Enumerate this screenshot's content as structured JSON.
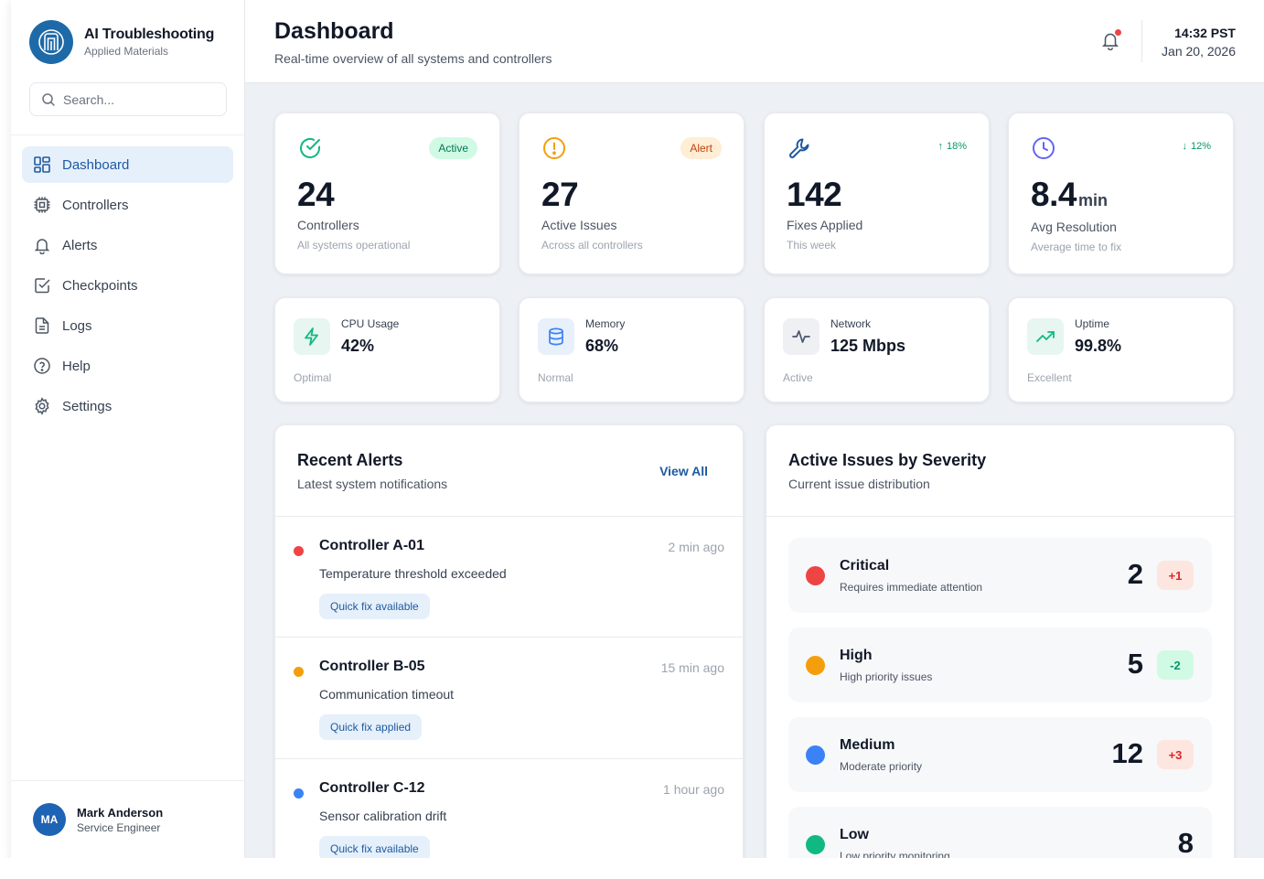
{
  "brand": {
    "title": "AI Troubleshooting",
    "subtitle": "Applied Materials"
  },
  "search": {
    "placeholder": "Search..."
  },
  "nav": [
    {
      "label": "Dashboard",
      "icon": "dashboard-icon",
      "active": true
    },
    {
      "label": "Controllers",
      "icon": "chip-icon"
    },
    {
      "label": "Alerts",
      "icon": "bell-icon"
    },
    {
      "label": "Checkpoints",
      "icon": "checkbox-icon"
    },
    {
      "label": "Logs",
      "icon": "document-icon"
    },
    {
      "label": "Help",
      "icon": "help-icon"
    },
    {
      "label": "Settings",
      "icon": "gear-icon"
    }
  ],
  "user": {
    "initials": "MA",
    "name": "Mark Anderson",
    "role": "Service Engineer"
  },
  "header": {
    "title": "Dashboard",
    "subtitle": "Real-time overview of all systems and controllers",
    "time": "14:32 PST",
    "date": "Jan 20, 2026"
  },
  "stats": [
    {
      "value": "24",
      "label": "Controllers",
      "note": "All systems operational",
      "badge": "Active",
      "icon": "check-circle-icon",
      "color": "#10b981"
    },
    {
      "value": "27",
      "label": "Active Issues",
      "note": "Across all controllers",
      "badge": "Alert",
      "icon": "alert-circle-icon",
      "color": "#f59e0b"
    },
    {
      "value": "142",
      "label": "Fixes Applied",
      "note": "This week",
      "badge": "18%",
      "trend": "up",
      "icon": "wrench-icon",
      "color": "#1e5aa0"
    },
    {
      "value": "8.4",
      "unit": "min",
      "label": "Avg Resolution",
      "note": "Average time to fix",
      "badge": "12%",
      "trend": "down",
      "icon": "clock-icon",
      "color": "#6366f1"
    }
  ],
  "metrics": [
    {
      "label": "CPU Usage",
      "value": "42%",
      "status": "Optimal",
      "icon": "lightning-icon"
    },
    {
      "label": "Memory",
      "value": "68%",
      "status": "Normal",
      "icon": "database-icon"
    },
    {
      "label": "Network",
      "value": "125 Mbps",
      "status": "Active",
      "icon": "pulse-icon"
    },
    {
      "label": "Uptime",
      "value": "99.8%",
      "status": "Excellent",
      "icon": "trending-up-icon"
    }
  ],
  "alerts_panel": {
    "title": "Recent Alerts",
    "subtitle": "Latest system notifications",
    "view_all": "View All",
    "items": [
      {
        "name": "Controller A-01",
        "time": "2 min ago",
        "desc": "Temperature threshold exceeded",
        "chip": "Quick fix available",
        "color": "#ef4444"
      },
      {
        "name": "Controller B-05",
        "time": "15 min ago",
        "desc": "Communication timeout",
        "chip": "Quick fix applied",
        "color": "#f59e0b"
      },
      {
        "name": "Controller C-12",
        "time": "1 hour ago",
        "desc": "Sensor calibration drift",
        "chip": "Quick fix available",
        "color": "#3b82f6"
      }
    ]
  },
  "severity_panel": {
    "title": "Active Issues by Severity",
    "subtitle": "Current issue distribution",
    "items": [
      {
        "name": "Critical",
        "desc": "Requires immediate attention",
        "count": "2",
        "change": "+1",
        "color": "#ef4444"
      },
      {
        "name": "High",
        "desc": "High priority issues",
        "count": "5",
        "change": "-2",
        "color": "#f59e0b"
      },
      {
        "name": "Medium",
        "desc": "Moderate priority",
        "count": "12",
        "change": "+3",
        "color": "#3b82f6"
      },
      {
        "name": "Low",
        "desc": "Low priority monitoring",
        "count": "8",
        "change": "",
        "color": "#10b981"
      }
    ]
  }
}
